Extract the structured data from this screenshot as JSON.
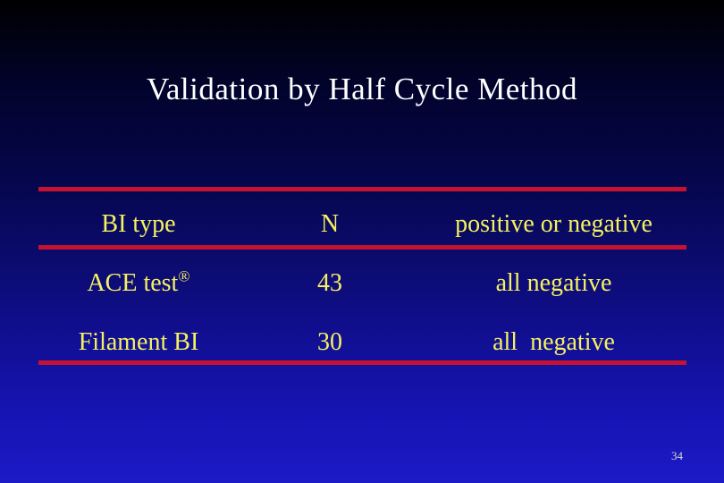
{
  "slide": {
    "title": "Validation by Half Cycle Method",
    "page_number": "34"
  },
  "table": {
    "headers": {
      "bi_type": "BI type",
      "n": "N",
      "result": "positive or negative"
    },
    "rows": [
      {
        "bi_type": "ACE test",
        "bi_type_sup": "®",
        "n": "43",
        "result": "all negative"
      },
      {
        "bi_type": "Filament BI",
        "bi_type_sup": "",
        "n": "30",
        "result": "all  negative"
      }
    ]
  },
  "colors": {
    "background_top": "#000001",
    "background_bottom": "#1c1ac6",
    "rule_red": "#c41230",
    "table_text_yellow": "#f5f160",
    "title_white": "#ffffff",
    "slide_number_gray": "#d9d9d9"
  }
}
